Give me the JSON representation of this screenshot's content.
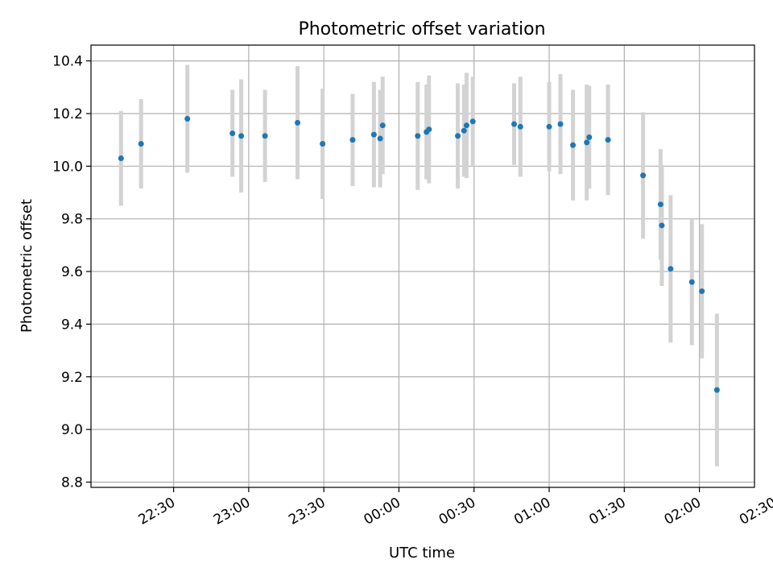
{
  "chart_data": {
    "type": "scatter",
    "title": "Photometric offset variation",
    "xlabel": "UTC time",
    "ylabel": "Photometric offset",
    "x_tick_labels": [
      "22:30",
      "23:00",
      "23:30",
      "00:00",
      "00:30",
      "01:00",
      "01:30",
      "02:00",
      "02:30"
    ],
    "x_tick_minutes": [
      1350,
      1380,
      1410,
      1440,
      1470,
      1500,
      1530,
      1560,
      1590
    ],
    "xlim_minutes": [
      1317,
      1582
    ],
    "y_ticks": [
      8.8,
      9.0,
      9.2,
      9.4,
      9.6,
      9.8,
      10.0,
      10.2,
      10.4
    ],
    "y_tick_labels": [
      "8.8",
      "9.0",
      "9.2",
      "9.4",
      "9.6",
      "9.8",
      "10.0",
      "10.2",
      "10.4"
    ],
    "ylim": [
      8.78,
      10.46
    ],
    "grid": true,
    "colors": {
      "point": "#1f77b4",
      "errorbar": "#d3d3d3",
      "grid": "#b0b0b0"
    },
    "points": [
      {
        "t": 1329.0,
        "y": 10.03,
        "err": 0.18
      },
      {
        "t": 1337.0,
        "y": 10.085,
        "err": 0.17
      },
      {
        "t": 1355.5,
        "y": 10.18,
        "err": 0.205
      },
      {
        "t": 1373.5,
        "y": 10.125,
        "err": 0.165
      },
      {
        "t": 1377.0,
        "y": 10.115,
        "err": 0.215
      },
      {
        "t": 1386.5,
        "y": 10.115,
        "err": 0.175
      },
      {
        "t": 1399.5,
        "y": 10.165,
        "err": 0.215
      },
      {
        "t": 1409.5,
        "y": 10.085,
        "err": 0.21
      },
      {
        "t": 1421.5,
        "y": 10.1,
        "err": 0.175
      },
      {
        "t": 1430.0,
        "y": 10.12,
        "err": 0.2
      },
      {
        "t": 1432.5,
        "y": 10.105,
        "err": 0.185
      },
      {
        "t": 1433.5,
        "y": 10.155,
        "err": 0.185
      },
      {
        "t": 1447.5,
        "y": 10.115,
        "err": 0.205
      },
      {
        "t": 1451.0,
        "y": 10.13,
        "err": 0.18
      },
      {
        "t": 1452.0,
        "y": 10.14,
        "err": 0.205
      },
      {
        "t": 1463.5,
        "y": 10.115,
        "err": 0.2
      },
      {
        "t": 1466.0,
        "y": 10.135,
        "err": 0.175
      },
      {
        "t": 1467.0,
        "y": 10.155,
        "err": 0.2
      },
      {
        "t": 1469.5,
        "y": 10.17,
        "err": 0.17
      },
      {
        "t": 1486.0,
        "y": 10.16,
        "err": 0.155
      },
      {
        "t": 1488.5,
        "y": 10.15,
        "err": 0.19
      },
      {
        "t": 1500.0,
        "y": 10.15,
        "err": 0.17
      },
      {
        "t": 1504.5,
        "y": 10.16,
        "err": 0.19
      },
      {
        "t": 1509.5,
        "y": 10.08,
        "err": 0.21
      },
      {
        "t": 1515.0,
        "y": 10.09,
        "err": 0.22
      },
      {
        "t": 1516.0,
        "y": 10.11,
        "err": 0.195
      },
      {
        "t": 1523.5,
        "y": 10.1,
        "err": 0.21
      },
      {
        "t": 1537.5,
        "y": 9.965,
        "err": 0.24
      },
      {
        "t": 1544.5,
        "y": 9.855,
        "err": 0.21
      },
      {
        "t": 1545.0,
        "y": 9.775,
        "err": 0.23
      },
      {
        "t": 1548.5,
        "y": 9.61,
        "err": 0.28
      },
      {
        "t": 1557.0,
        "y": 9.56,
        "err": 0.24
      },
      {
        "t": 1561.0,
        "y": 9.525,
        "err": 0.255
      },
      {
        "t": 1567.0,
        "y": 9.15,
        "err": 0.29
      }
    ]
  }
}
